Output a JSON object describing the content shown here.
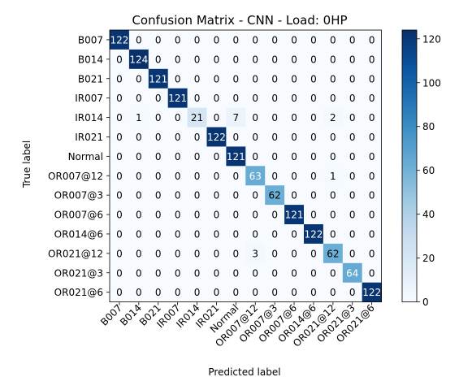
{
  "chart_data": {
    "type": "heatmap",
    "title": "Confusion Matrix - CNN - Load: 0HP",
    "xlabel": "Predicted label",
    "ylabel": "True label",
    "labels": [
      "B007",
      "B014",
      "B021",
      "IR007",
      "IR014",
      "IR021",
      "Normal",
      "OR007@12",
      "OR007@3",
      "OR007@6",
      "OR014@6",
      "OR021@12",
      "OR021@3",
      "OR021@6"
    ],
    "matrix": [
      [
        122,
        0,
        0,
        0,
        0,
        0,
        0,
        0,
        0,
        0,
        0,
        0,
        0,
        0
      ],
      [
        0,
        124,
        0,
        0,
        0,
        0,
        0,
        0,
        0,
        0,
        0,
        0,
        0,
        0
      ],
      [
        0,
        0,
        121,
        0,
        0,
        0,
        0,
        0,
        0,
        0,
        0,
        0,
        0,
        0
      ],
      [
        0,
        0,
        0,
        121,
        0,
        0,
        0,
        0,
        0,
        0,
        0,
        0,
        0,
        0
      ],
      [
        0,
        1,
        0,
        0,
        21,
        0,
        7,
        0,
        0,
        0,
        0,
        2,
        0,
        0
      ],
      [
        0,
        0,
        0,
        0,
        0,
        122,
        0,
        0,
        0,
        0,
        0,
        0,
        0,
        0
      ],
      [
        0,
        0,
        0,
        0,
        0,
        0,
        121,
        0,
        0,
        0,
        0,
        0,
        0,
        0
      ],
      [
        0,
        0,
        0,
        0,
        0,
        0,
        0,
        63,
        0,
        0,
        0,
        1,
        0,
        0
      ],
      [
        0,
        0,
        0,
        0,
        0,
        0,
        0,
        0,
        62,
        0,
        0,
        0,
        0,
        0
      ],
      [
        0,
        0,
        0,
        0,
        0,
        0,
        0,
        0,
        0,
        121,
        0,
        0,
        0,
        0
      ],
      [
        0,
        0,
        0,
        0,
        0,
        0,
        0,
        0,
        0,
        0,
        122,
        0,
        0,
        0
      ],
      [
        0,
        0,
        0,
        0,
        0,
        0,
        0,
        3,
        0,
        0,
        0,
        62,
        0,
        0
      ],
      [
        0,
        0,
        0,
        0,
        0,
        0,
        0,
        0,
        0,
        0,
        0,
        0,
        64,
        0
      ],
      [
        0,
        0,
        0,
        0,
        0,
        0,
        0,
        0,
        0,
        0,
        0,
        0,
        0,
        122
      ]
    ],
    "colormap": "Blues",
    "colorbar": {
      "range": [
        0,
        124
      ],
      "ticks": [
        0,
        20,
        40,
        60,
        80,
        100,
        120
      ]
    },
    "colors": {
      "low": "#f7fbff",
      "high": "#08306b"
    }
  }
}
